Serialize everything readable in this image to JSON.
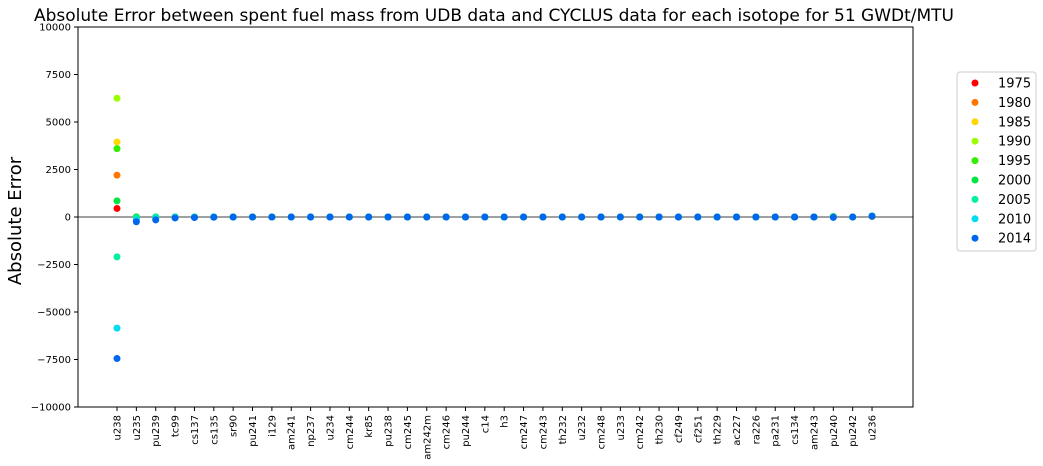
{
  "chart_data": {
    "type": "scatter",
    "title": "Absolute Error between spent fuel mass from UDB data and CYCLUS data for each isotope for 51 GWDt/MTU",
    "xlabel": "",
    "ylabel": "Absolute Error",
    "ylim": [
      -10000,
      10000
    ],
    "yticks": [
      -10000,
      -7500,
      -5000,
      -2500,
      0,
      2500,
      5000,
      7500,
      10000
    ],
    "ytick_labels": [
      "−10000",
      "−7500",
      "−5000",
      "−2500",
      "0",
      "2500",
      "5000",
      "7500",
      "10000"
    ],
    "grid": false,
    "zero_line": true,
    "legend_position": "right",
    "categories": [
      "u238",
      "u235",
      "pu239",
      "tc99",
      "cs137",
      "cs135",
      "sr90",
      "pu241",
      "i129",
      "am241",
      "np237",
      "u234",
      "cm244",
      "kr85",
      "pu238",
      "cm245",
      "am242m",
      "cm246",
      "pu244",
      "c14",
      "h3",
      "cm247",
      "cm243",
      "th232",
      "u232",
      "cm248",
      "u233",
      "cm242",
      "th230",
      "cf249",
      "cf251",
      "th229",
      "ac227",
      "ra226",
      "pa231",
      "cs134",
      "am243",
      "pu240",
      "pu242",
      "u236"
    ],
    "series": [
      {
        "name": "1975",
        "color": "#ff0000",
        "values": [
          450,
          0,
          0,
          0,
          0,
          0,
          0,
          0,
          0,
          0,
          0,
          0,
          0,
          0,
          0,
          0,
          0,
          0,
          0,
          0,
          0,
          0,
          0,
          0,
          0,
          0,
          0,
          0,
          0,
          0,
          0,
          0,
          0,
          0,
          0,
          0,
          0,
          10,
          0,
          30
        ]
      },
      {
        "name": "1980",
        "color": "#ff7700",
        "values": [
          2200,
          0,
          0,
          0,
          0,
          0,
          0,
          0,
          0,
          0,
          0,
          0,
          0,
          0,
          0,
          0,
          0,
          0,
          0,
          0,
          0,
          0,
          0,
          0,
          0,
          0,
          0,
          0,
          0,
          0,
          0,
          0,
          0,
          0,
          0,
          0,
          0,
          10,
          0,
          30
        ]
      },
      {
        "name": "1985",
        "color": "#ffd700",
        "values": [
          3950,
          0,
          0,
          0,
          0,
          0,
          0,
          0,
          0,
          0,
          0,
          0,
          0,
          0,
          0,
          0,
          0,
          0,
          0,
          0,
          0,
          0,
          0,
          0,
          0,
          0,
          0,
          0,
          0,
          0,
          0,
          0,
          0,
          0,
          0,
          0,
          0,
          10,
          0,
          30
        ]
      },
      {
        "name": "1990",
        "color": "#99ff00",
        "values": [
          6250,
          0,
          0,
          0,
          0,
          0,
          0,
          0,
          0,
          0,
          0,
          0,
          0,
          0,
          0,
          0,
          0,
          0,
          0,
          0,
          0,
          0,
          0,
          0,
          0,
          0,
          0,
          0,
          0,
          0,
          0,
          0,
          0,
          0,
          0,
          0,
          0,
          20,
          0,
          40
        ]
      },
      {
        "name": "1995",
        "color": "#33ee00",
        "values": [
          3600,
          0,
          0,
          0,
          0,
          0,
          0,
          0,
          0,
          0,
          0,
          0,
          0,
          0,
          0,
          0,
          0,
          0,
          0,
          0,
          0,
          0,
          0,
          0,
          0,
          0,
          0,
          0,
          0,
          0,
          0,
          0,
          0,
          0,
          0,
          0,
          0,
          20,
          0,
          40
        ]
      },
      {
        "name": "2000",
        "color": "#00e640",
        "values": [
          850,
          0,
          0,
          0,
          0,
          0,
          0,
          0,
          0,
          0,
          0,
          0,
          0,
          0,
          0,
          0,
          0,
          0,
          0,
          0,
          0,
          0,
          0,
          0,
          0,
          0,
          0,
          0,
          0,
          0,
          0,
          0,
          0,
          0,
          0,
          0,
          0,
          20,
          0,
          50
        ]
      },
      {
        "name": "2005",
        "color": "#00f0a0",
        "values": [
          -2100,
          -50,
          0,
          0,
          0,
          0,
          0,
          0,
          0,
          0,
          0,
          0,
          0,
          0,
          0,
          0,
          0,
          0,
          0,
          0,
          0,
          0,
          0,
          0,
          0,
          0,
          0,
          0,
          0,
          0,
          0,
          0,
          0,
          0,
          0,
          0,
          0,
          10,
          0,
          60
        ]
      },
      {
        "name": "2010",
        "color": "#00dcf0",
        "values": [
          -5850,
          -150,
          -80,
          -20,
          -10,
          0,
          0,
          0,
          0,
          0,
          0,
          0,
          0,
          0,
          0,
          0,
          0,
          0,
          0,
          0,
          0,
          0,
          0,
          0,
          0,
          0,
          0,
          0,
          0,
          0,
          0,
          0,
          0,
          0,
          0,
          0,
          0,
          -10,
          0,
          50
        ]
      },
      {
        "name": "2014",
        "color": "#0066ee",
        "values": [
          -7450,
          -250,
          -150,
          -50,
          -30,
          -10,
          0,
          0,
          0,
          0,
          0,
          0,
          0,
          0,
          0,
          0,
          0,
          0,
          0,
          0,
          0,
          0,
          0,
          0,
          0,
          0,
          0,
          0,
          0,
          0,
          0,
          0,
          0,
          0,
          0,
          0,
          0,
          -20,
          0,
          40
        ]
      }
    ]
  }
}
